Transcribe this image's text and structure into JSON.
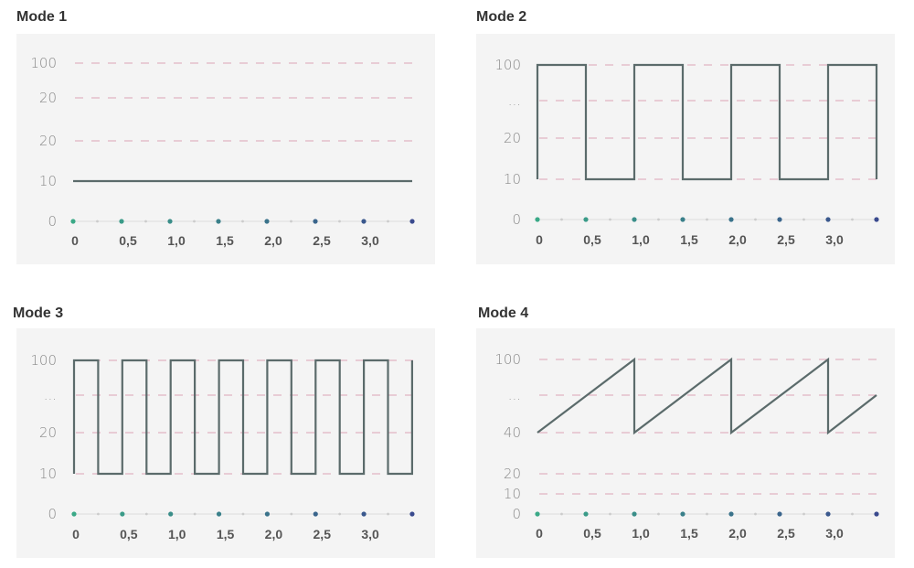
{
  "chart_data": [
    {
      "type": "line",
      "title": "Mode 1",
      "y_ticks": [
        "100",
        "20",
        "20",
        "10",
        "0"
      ],
      "x_ticks": [
        "0",
        "0,5",
        "1,0",
        "1,5",
        "2,0",
        "2,5",
        "3,0"
      ],
      "xlim": [
        0,
        3.5
      ],
      "grid": "dashed horizontal",
      "series": [
        {
          "points": [
            [
              0,
              "10"
            ],
            [
              3.5,
              "10"
            ]
          ]
        }
      ]
    },
    {
      "type": "line",
      "title": "Mode 2",
      "y_ticks": [
        "100",
        "...",
        "20",
        "10",
        "0"
      ],
      "x_ticks": [
        "0",
        "0,5",
        "1,0",
        "1,5",
        "2,0",
        "2,5",
        "3,0"
      ],
      "xlim": [
        0,
        3.5
      ],
      "grid": "dashed horizontal",
      "series": [
        {
          "points": [
            [
              0,
              "10"
            ],
            [
              0,
              "100"
            ],
            [
              0.5,
              "100"
            ],
            [
              0.5,
              "10"
            ],
            [
              1,
              "10"
            ],
            [
              1,
              "100"
            ],
            [
              1.5,
              "100"
            ],
            [
              1.5,
              "10"
            ],
            [
              2,
              "10"
            ],
            [
              2,
              "100"
            ],
            [
              2.5,
              "100"
            ],
            [
              2.5,
              "10"
            ],
            [
              3,
              "10"
            ],
            [
              3,
              "100"
            ],
            [
              3.5,
              "100"
            ],
            [
              3.5,
              "10"
            ]
          ]
        }
      ]
    },
    {
      "type": "line",
      "title": "Mode 3",
      "y_ticks": [
        "100",
        "...",
        "20",
        "10",
        "0"
      ],
      "x_ticks": [
        "0",
        "0,5",
        "1,0",
        "1,5",
        "2,0",
        "2,5",
        "3,0"
      ],
      "xlim": [
        0,
        3.5
      ],
      "grid": "dashed horizontal",
      "series": [
        {
          "points": [
            [
              0,
              "10"
            ],
            [
              0,
              "100"
            ],
            [
              0.25,
              "100"
            ],
            [
              0.25,
              "10"
            ],
            [
              0.5,
              "10"
            ],
            [
              0.5,
              "100"
            ],
            [
              0.75,
              "100"
            ],
            [
              0.75,
              "10"
            ],
            [
              1,
              "10"
            ],
            [
              1,
              "100"
            ],
            [
              1.25,
              "100"
            ],
            [
              1.25,
              "10"
            ],
            [
              1.5,
              "10"
            ],
            [
              1.5,
              "100"
            ],
            [
              1.75,
              "100"
            ],
            [
              1.75,
              "10"
            ],
            [
              2,
              "10"
            ],
            [
              2,
              "100"
            ],
            [
              2.25,
              "100"
            ],
            [
              2.25,
              "10"
            ],
            [
              2.5,
              "10"
            ],
            [
              2.5,
              "100"
            ],
            [
              2.75,
              "100"
            ],
            [
              2.75,
              "10"
            ],
            [
              3,
              "10"
            ],
            [
              3,
              "100"
            ],
            [
              3.25,
              "100"
            ],
            [
              3.25,
              "10"
            ],
            [
              3.5,
              "10"
            ],
            [
              3.5,
              "100"
            ]
          ]
        }
      ]
    },
    {
      "type": "line",
      "title": "Mode 4",
      "y_ticks": [
        "100",
        "...",
        "40",
        "20",
        "10",
        "0"
      ],
      "x_ticks": [
        "0",
        "0,5",
        "1,0",
        "1,5",
        "2,0",
        "2,5",
        "3,0"
      ],
      "xlim": [
        0,
        3.5
      ],
      "grid": "dashed horizontal",
      "series": [
        {
          "points": [
            [
              0,
              "40"
            ],
            [
              1,
              "100"
            ],
            [
              1,
              "40"
            ],
            [
              2,
              "100"
            ],
            [
              2,
              "40"
            ],
            [
              3,
              "100"
            ],
            [
              3,
              "40"
            ],
            [
              3.5,
              "..."
            ]
          ]
        }
      ]
    }
  ],
  "colors": {
    "panel_bg": "#f4f4f4",
    "series_line": "#5b6b6b",
    "grid_dash": "#dba3b6",
    "axis_dot_start": "#3aa987",
    "axis_dot_end": "#3a4a8e",
    "axis_minor_dot": "#cccccc"
  }
}
